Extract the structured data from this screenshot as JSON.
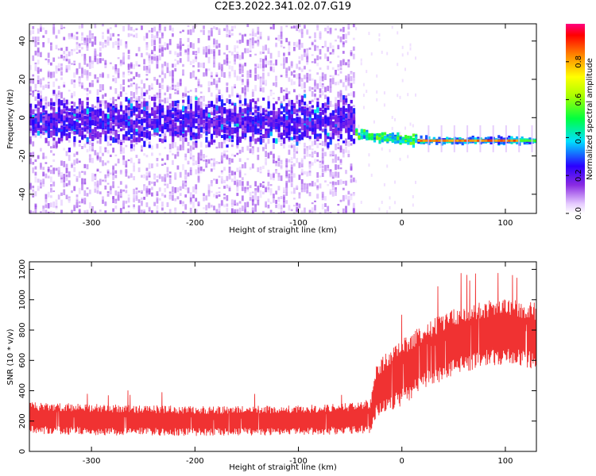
{
  "title": "C2E3.2022.341.02.07.G19",
  "chart_data": [
    {
      "type": "heatmap",
      "title": "C2E3.2022.341.02.07.G19",
      "xlabel": "Height of straight line (km)",
      "ylabel": "Frequency (Hz)",
      "xlim": [
        -360,
        130
      ],
      "ylim": [
        -50,
        49
      ],
      "xticks": [
        -300,
        -200,
        -100,
        0,
        100
      ],
      "yticks": [
        -40,
        -20,
        0,
        20,
        40
      ],
      "colorbar": {
        "label": "Normalized spectral amplitude",
        "range": [
          0,
          1
        ],
        "ticks": [
          "0.0",
          "0.2",
          "0.4",
          "0.6",
          "0.8"
        ],
        "colormap": "rainbow (white → purple → blue → cyan → green → yellow → orange → red → magenta)"
      },
      "features": {
        "noisy_band": {
          "x_range": [
            -360,
            -45
          ],
          "center_frequency": -2,
          "half_width": 7,
          "peak_amplitude": 0.4
        },
        "transition": {
          "x_range": [
            -45,
            15
          ],
          "frequency": [
            -9,
            -12
          ],
          "amplitude": 0.5
        },
        "tracked_signal": {
          "x_range": [
            15,
            130
          ],
          "frequency": -12,
          "amplitude": 0.9
        }
      },
      "grid": false
    },
    {
      "type": "line",
      "xlabel": "Height of straight line (km)",
      "ylabel": "SNR (10 * v/v)",
      "xlim": [
        -360,
        130
      ],
      "ylim": [
        0,
        1250
      ],
      "xticks": [
        -300,
        -200,
        -100,
        0,
        100
      ],
      "yticks": [
        0,
        200,
        400,
        600,
        800,
        1000,
        1200
      ],
      "color": "#f03232",
      "envelope": [
        {
          "x": -360,
          "mean": 220,
          "spread": 180
        },
        {
          "x": -300,
          "mean": 210,
          "spread": 180
        },
        {
          "x": -200,
          "mean": 200,
          "spread": 170
        },
        {
          "x": -100,
          "mean": 205,
          "spread": 170
        },
        {
          "x": -50,
          "mean": 215,
          "spread": 180
        },
        {
          "x": -30,
          "mean": 230,
          "spread": 200
        },
        {
          "x": -25,
          "mean": 400,
          "spread": 330
        },
        {
          "x": 0,
          "mean": 520,
          "spread": 380
        },
        {
          "x": 25,
          "mean": 640,
          "spread": 380
        },
        {
          "x": 50,
          "mean": 720,
          "spread": 380
        },
        {
          "x": 75,
          "mean": 770,
          "spread": 380
        },
        {
          "x": 100,
          "mean": 790,
          "spread": 380
        },
        {
          "x": 130,
          "mean": 760,
          "spread": 380
        }
      ],
      "grid": false
    }
  ]
}
